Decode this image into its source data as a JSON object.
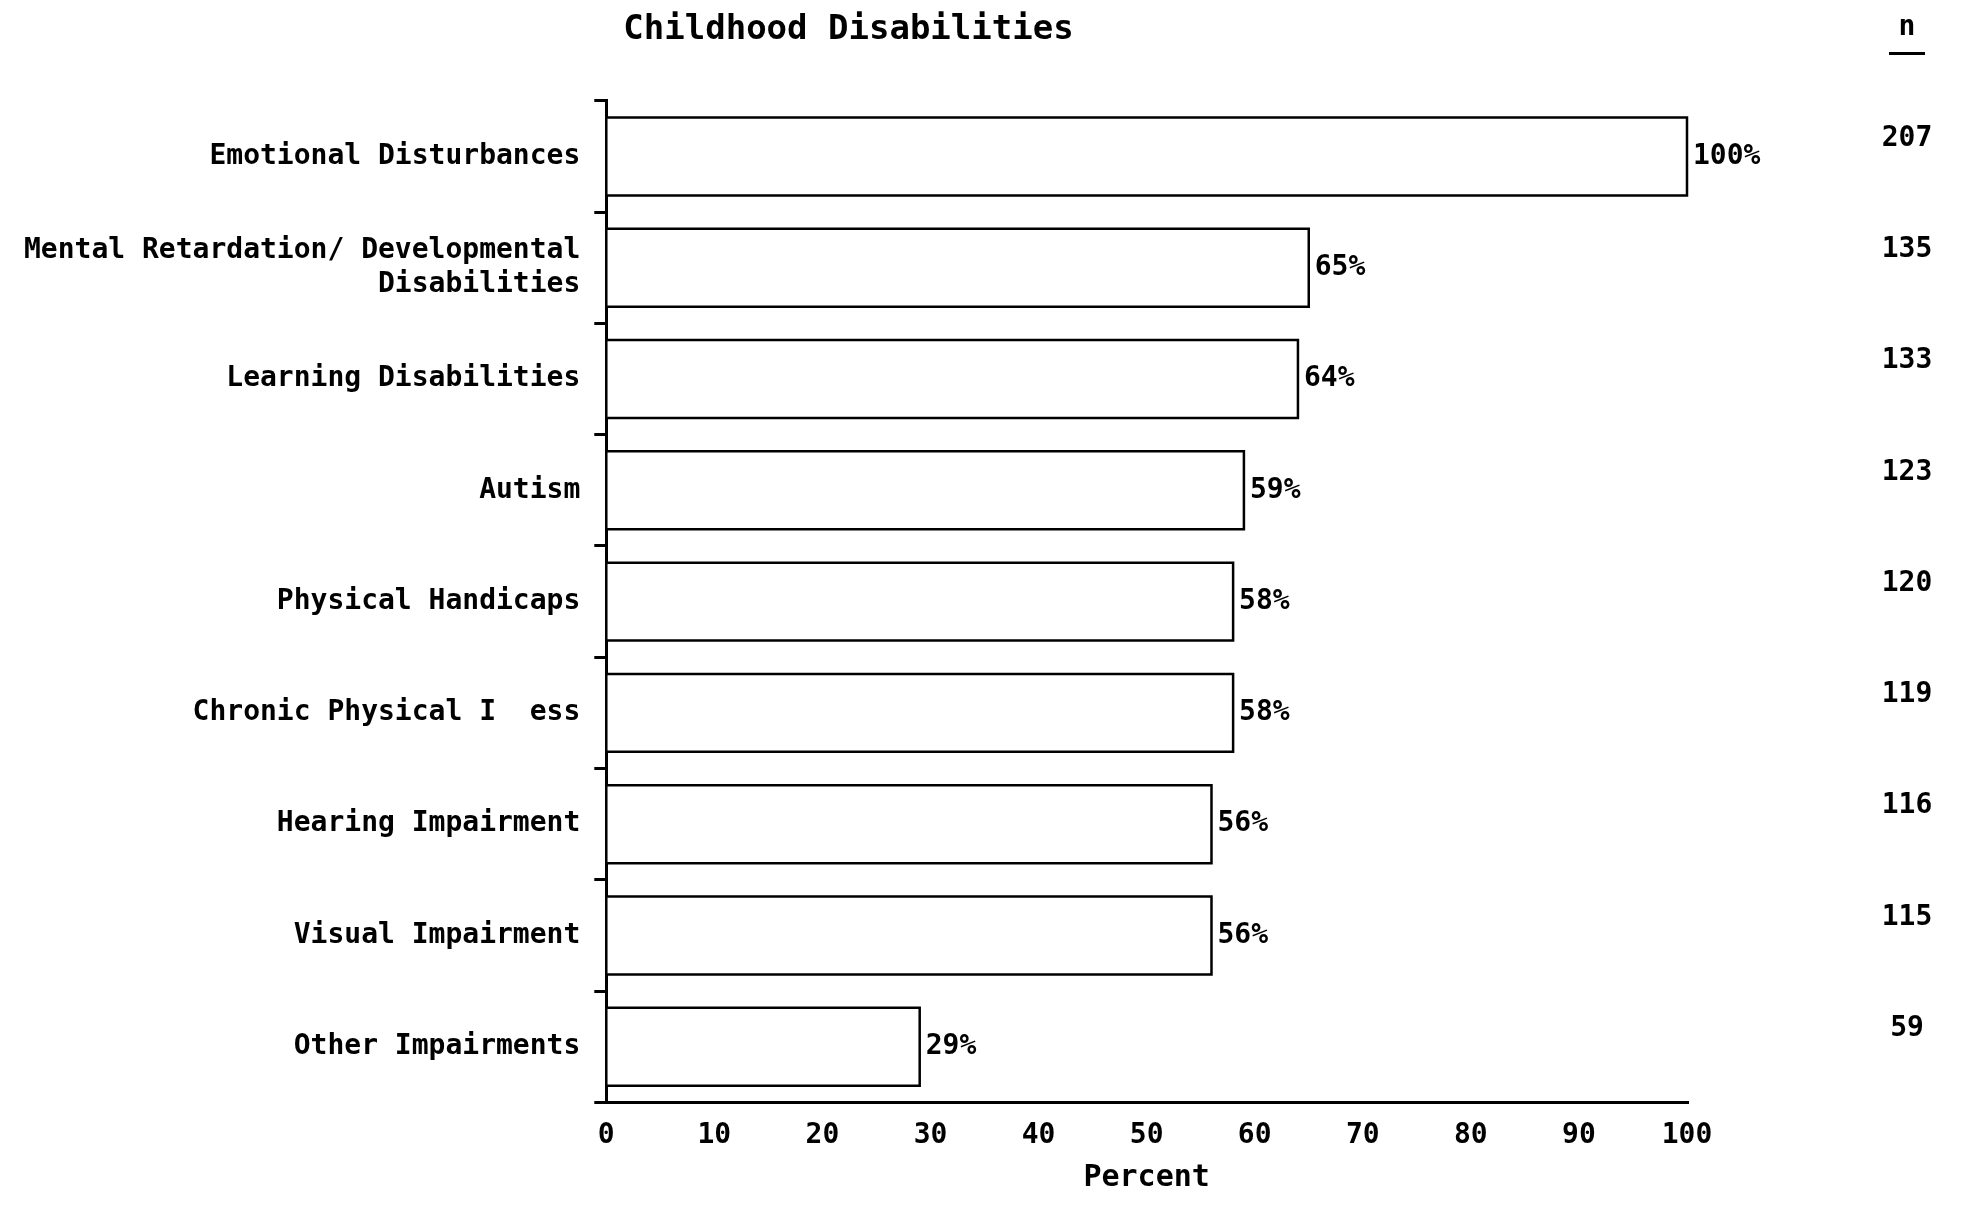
{
  "chart_data": {
    "type": "bar",
    "orientation": "horizontal",
    "title": "Childhood Disabilities",
    "xlabel": "Percent",
    "categories": [
      "Emotional Disturbances",
      "Mental Retardation/ Developmental Disabilities",
      "Learning Disabilities",
      "Autism",
      "Physical Handicaps",
      "Chronic Physical I  ess",
      "Hearing Impairment",
      "Visual Impairment",
      "Other Impairments"
    ],
    "values": [
      100,
      65,
      64,
      59,
      58,
      58,
      56,
      56,
      29
    ],
    "value_labels": [
      "100%",
      "65%",
      "64%",
      "59%",
      "58%",
      "58%",
      "56%",
      "56%",
      "29%"
    ],
    "color": "#ffffff",
    "xlim": [
      0,
      100
    ],
    "xticks": [
      0,
      10,
      20,
      30,
      40,
      50,
      60,
      70,
      80,
      90,
      100
    ],
    "annotations": [
      "n",
      "207",
      "135",
      "133",
      "123",
      "120",
      "119",
      "116",
      "115",
      "59"
    ],
    "grid": false,
    "legend": false
  }
}
